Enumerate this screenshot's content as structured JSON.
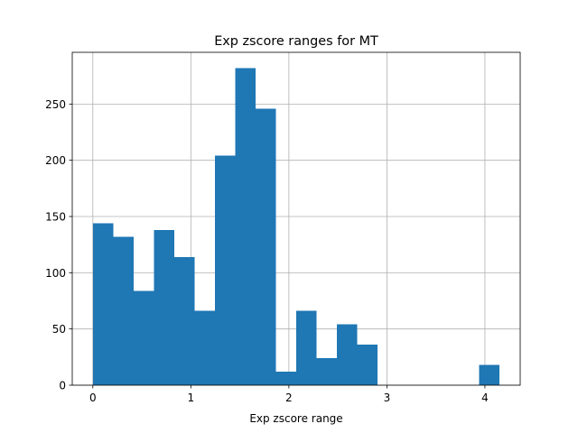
{
  "chart_data": {
    "type": "bar",
    "title": "Exp zscore ranges for MT",
    "xlabel": "Exp zscore range",
    "ylabel": "",
    "xlim": [
      -0.21,
      4.36
    ],
    "ylim": [
      0,
      296
    ],
    "grid": true,
    "bar_color": "#1f77b4",
    "x_ticks": [
      0,
      1,
      2,
      3,
      4
    ],
    "y_ticks": [
      0,
      50,
      100,
      150,
      200,
      250
    ],
    "bin_edges": [
      0.0,
      0.2075,
      0.415,
      0.6225,
      0.83,
      1.0375,
      1.245,
      1.4525,
      1.66,
      1.8675,
      2.075,
      2.2825,
      2.49,
      2.6975,
      2.905,
      3.1125,
      3.32,
      3.5275,
      3.735,
      3.9425,
      4.15
    ],
    "values": [
      144,
      132,
      84,
      138,
      114,
      66,
      204,
      282,
      246,
      12,
      66,
      24,
      54,
      36,
      0,
      0,
      0,
      0,
      0,
      18
    ]
  }
}
